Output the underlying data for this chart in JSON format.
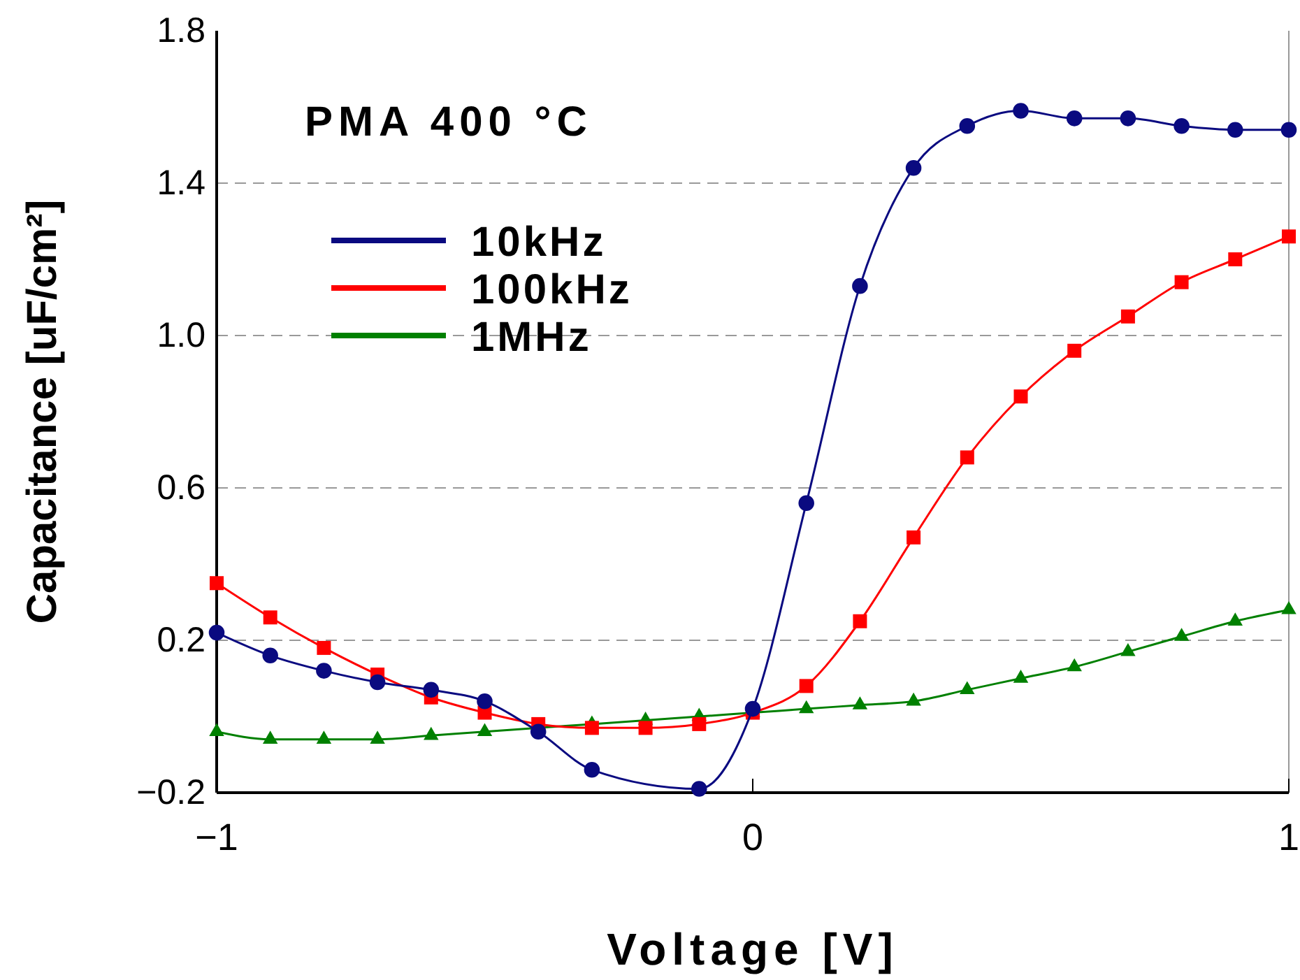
{
  "chart_data": {
    "type": "line",
    "xlabel": "Voltage [V]",
    "ylabel": "Capacitance [uF/cm²]",
    "annotations": [
      "PMA 400 °C"
    ],
    "xlim": [
      -1,
      1
    ],
    "xticks": [
      {
        "value": -1,
        "label": "−1"
      },
      0,
      1
    ],
    "ylim": [
      -0.2,
      1.8
    ],
    "yticks": [
      {
        "value": -0.2,
        "label": "−0.2"
      },
      0.2,
      0.6,
      {
        "value": 1.0,
        "label": "1.0"
      },
      1.4,
      1.8
    ],
    "grid": "y",
    "legend": "top left",
    "line_style": "solid",
    "series": [
      {
        "name": "10kHz",
        "color": "#0a0a80",
        "marker": "circle",
        "x": [
          -1,
          -0.9,
          -0.8,
          -0.7,
          -0.6,
          -0.5,
          -0.4,
          -0.3,
          -0.1,
          0,
          0.1,
          0.2,
          0.3,
          0.4,
          0.5,
          0.6,
          0.7,
          0.8,
          0.9,
          1
        ],
        "values": [
          0.22,
          0.16,
          0.12,
          0.09,
          0.07,
          0.04,
          -0.04,
          -0.14,
          -0.19,
          0.02,
          0.56,
          1.13,
          1.44,
          1.55,
          1.59,
          1.57,
          1.57,
          1.55,
          1.54,
          1.54
        ]
      },
      {
        "name": "100kHz",
        "color": "#ff0000",
        "marker": "square",
        "x": [
          -1,
          -0.9,
          -0.8,
          -0.7,
          -0.6,
          -0.5,
          -0.4,
          -0.3,
          -0.2,
          -0.1,
          0,
          0.1,
          0.2,
          0.3,
          0.4,
          0.5,
          0.6,
          0.7,
          0.8,
          0.9,
          1
        ],
        "values": [
          0.35,
          0.26,
          0.18,
          0.11,
          0.05,
          0.01,
          -0.02,
          -0.03,
          -0.03,
          -0.02,
          0.01,
          0.08,
          0.25,
          0.47,
          0.68,
          0.84,
          0.96,
          1.05,
          1.14,
          1.2,
          1.26
        ]
      },
      {
        "name": "1MHz",
        "color": "#008000",
        "marker": "triangle",
        "x": [
          -1,
          -0.9,
          -0.8,
          -0.7,
          -0.6,
          -0.5,
          -0.4,
          -0.3,
          -0.2,
          -0.1,
          0,
          0.1,
          0.2,
          0.3,
          0.4,
          0.5,
          0.6,
          0.7,
          0.8,
          0.9,
          1
        ],
        "values": [
          -0.04,
          -0.06,
          -0.06,
          -0.06,
          -0.05,
          -0.04,
          -0.03,
          -0.02,
          -0.01,
          0.0,
          0.01,
          0.02,
          0.03,
          0.04,
          0.07,
          0.1,
          0.13,
          0.17,
          0.21,
          0.25,
          0.28
        ]
      }
    ]
  }
}
